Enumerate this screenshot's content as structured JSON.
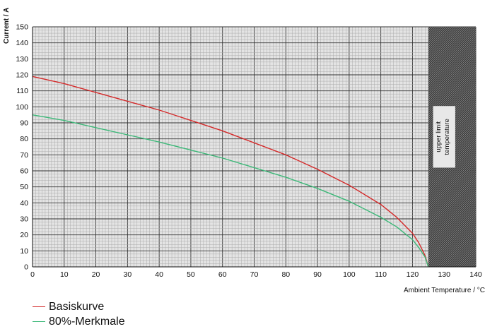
{
  "chart_data": {
    "type": "line",
    "xlabel": "Ambient Temperature / °C",
    "ylabel": "Current / A",
    "xlim": [
      0,
      140
    ],
    "ylim": [
      0,
      150
    ],
    "xticks": [
      0,
      10,
      20,
      30,
      40,
      50,
      60,
      70,
      80,
      90,
      100,
      110,
      120,
      130,
      140
    ],
    "yticks": [
      0,
      10,
      20,
      30,
      40,
      50,
      60,
      70,
      80,
      90,
      100,
      110,
      120,
      130,
      140,
      150
    ],
    "grid": true,
    "legend_position": "bottom-left",
    "series": [
      {
        "name": "Basiskurve",
        "color": "#d42a2a",
        "x": [
          0,
          10,
          20,
          30,
          40,
          50,
          60,
          70,
          80,
          90,
          100,
          110,
          115,
          120,
          122,
          124,
          125
        ],
        "y": [
          119,
          114.5,
          109,
          103.5,
          98,
          91.5,
          85,
          77.5,
          70,
          61,
          51,
          39,
          31,
          21,
          15,
          7,
          0
        ]
      },
      {
        "name": "80%-Merkmale",
        "color": "#3cb878",
        "x": [
          0,
          10,
          20,
          30,
          40,
          50,
          60,
          70,
          80,
          90,
          100,
          110,
          115,
          120,
          122,
          124,
          125
        ],
        "y": [
          95,
          91.5,
          87,
          82.5,
          78,
          73,
          68,
          62,
          56,
          49,
          41,
          31,
          25,
          17,
          12,
          6,
          0
        ]
      }
    ],
    "shaded_region": {
      "from": 125,
      "to": 140,
      "label": "upper limit temperature"
    }
  }
}
